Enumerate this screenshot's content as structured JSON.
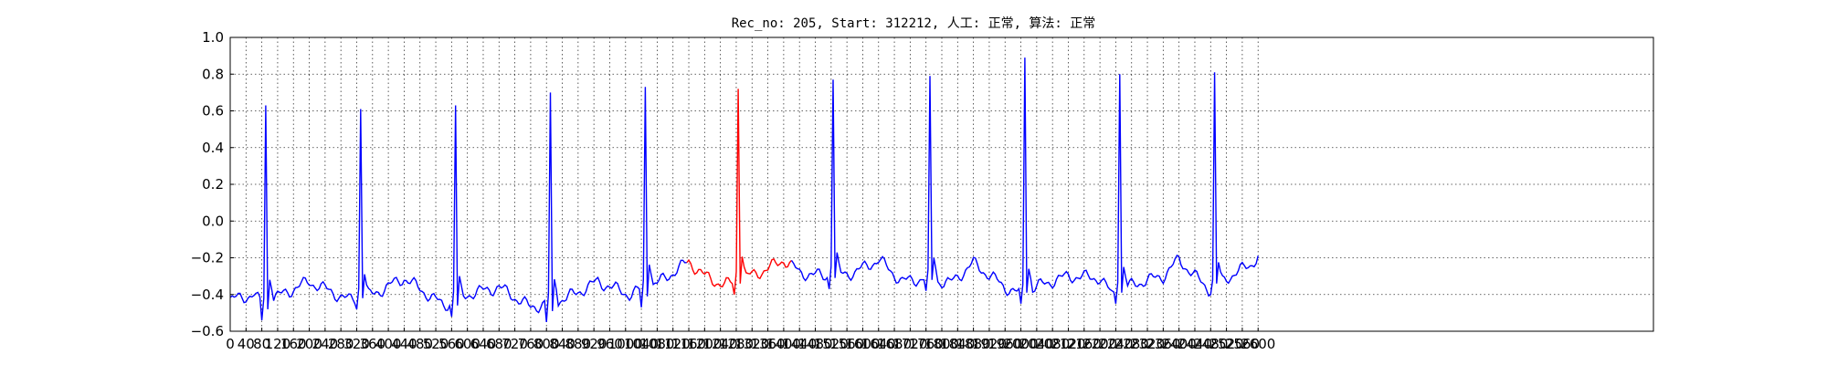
{
  "chart_data": {
    "type": "line",
    "title": "Rec_no: 205, Start: 312212, 人工: 正常, 算法: 正常",
    "xlabel": "",
    "ylabel": "",
    "xlim": [
      0,
      3600
    ],
    "ylim": [
      -0.6,
      1.0
    ],
    "grid": true,
    "x_tick_step": 40,
    "x_tick_labels": [
      "0",
      "40",
      "80",
      "120",
      "160",
      "200",
      "240",
      "280",
      "320",
      "360",
      "400",
      "440",
      "480",
      "520",
      "560",
      "600",
      "640",
      "680",
      "720",
      "760",
      "800",
      "840",
      "880",
      "920",
      "960",
      "1000",
      "1040",
      "1080",
      "1120",
      "1160",
      "1200",
      "1240",
      "1280",
      "1320",
      "1360",
      "1400",
      "1440",
      "1480",
      "1520",
      "1560",
      "1600",
      "1640",
      "1680",
      "1720",
      "1760",
      "1800",
      "1840",
      "1880",
      "1920",
      "1960",
      "2000",
      "2040",
      "2080",
      "2120",
      "2160",
      "2200",
      "2240",
      "2280",
      "2320",
      "2360",
      "2400",
      "2440",
      "2480",
      "2520",
      "2560",
      "2600"
    ],
    "y_ticks": [
      -0.6,
      -0.4,
      -0.2,
      0.0,
      0.2,
      0.4,
      0.6,
      0.8,
      1.0
    ],
    "y_tick_labels": [
      "−0.6",
      "−0.4",
      "−0.2",
      "0.0",
      "0.2",
      "0.4",
      "0.6",
      "0.8",
      "1.0"
    ],
    "sample_step": 5,
    "x_end": 2600,
    "baseline": -0.42,
    "colors": {
      "normal": "#0000ff",
      "highlight": "#ff0000"
    },
    "highlight_range": [
      1160,
      1420
    ],
    "beats": [
      {
        "x": 90,
        "peak": 0.63,
        "dip": -0.54
      },
      {
        "x": 330,
        "peak": 0.61,
        "dip": -0.48
      },
      {
        "x": 570,
        "peak": 0.63,
        "dip": -0.52
      },
      {
        "x": 810,
        "peak": 0.7,
        "dip": -0.55
      },
      {
        "x": 1050,
        "peak": 0.73,
        "dip": -0.47
      },
      {
        "x": 1285,
        "peak": 0.72,
        "dip": -0.4
      },
      {
        "x": 1525,
        "peak": 0.77,
        "dip": -0.37
      },
      {
        "x": 1770,
        "peak": 0.79,
        "dip": -0.38
      },
      {
        "x": 2010,
        "peak": 0.89,
        "dip": -0.45
      },
      {
        "x": 2250,
        "peak": 0.8,
        "dip": -0.45
      },
      {
        "x": 2490,
        "peak": 0.81,
        "dip": -0.4
      }
    ],
    "baseline_points": [
      [
        0,
        -0.43
      ],
      [
        60,
        -0.4
      ],
      [
        85,
        -0.47
      ],
      [
        110,
        -0.42
      ],
      [
        200,
        -0.33
      ],
      [
        300,
        -0.43
      ],
      [
        360,
        -0.4
      ],
      [
        440,
        -0.31
      ],
      [
        540,
        -0.46
      ],
      [
        600,
        -0.4
      ],
      [
        680,
        -0.36
      ],
      [
        760,
        -0.47
      ],
      [
        850,
        -0.42
      ],
      [
        930,
        -0.33
      ],
      [
        1010,
        -0.4
      ],
      [
        1080,
        -0.34
      ],
      [
        1160,
        -0.22
      ],
      [
        1200,
        -0.3
      ],
      [
        1250,
        -0.35
      ],
      [
        1300,
        -0.31
      ],
      [
        1360,
        -0.26
      ],
      [
        1400,
        -0.21
      ],
      [
        1440,
        -0.28
      ],
      [
        1500,
        -0.3
      ],
      [
        1580,
        -0.28
      ],
      [
        1640,
        -0.21
      ],
      [
        1700,
        -0.33
      ],
      [
        1760,
        -0.31
      ],
      [
        1820,
        -0.34
      ],
      [
        1880,
        -0.23
      ],
      [
        1960,
        -0.36
      ],
      [
        2000,
        -0.4
      ],
      [
        2060,
        -0.34
      ],
      [
        2120,
        -0.3
      ],
      [
        2200,
        -0.31
      ],
      [
        2230,
        -0.4
      ],
      [
        2290,
        -0.34
      ],
      [
        2360,
        -0.3
      ],
      [
        2400,
        -0.21
      ],
      [
        2440,
        -0.3
      ],
      [
        2480,
        -0.38
      ],
      [
        2520,
        -0.31
      ],
      [
        2580,
        -0.24
      ],
      [
        2600,
        -0.19
      ],
      [
        2630,
        -0.27
      ],
      [
        2640,
        -0.27
      ]
    ]
  }
}
